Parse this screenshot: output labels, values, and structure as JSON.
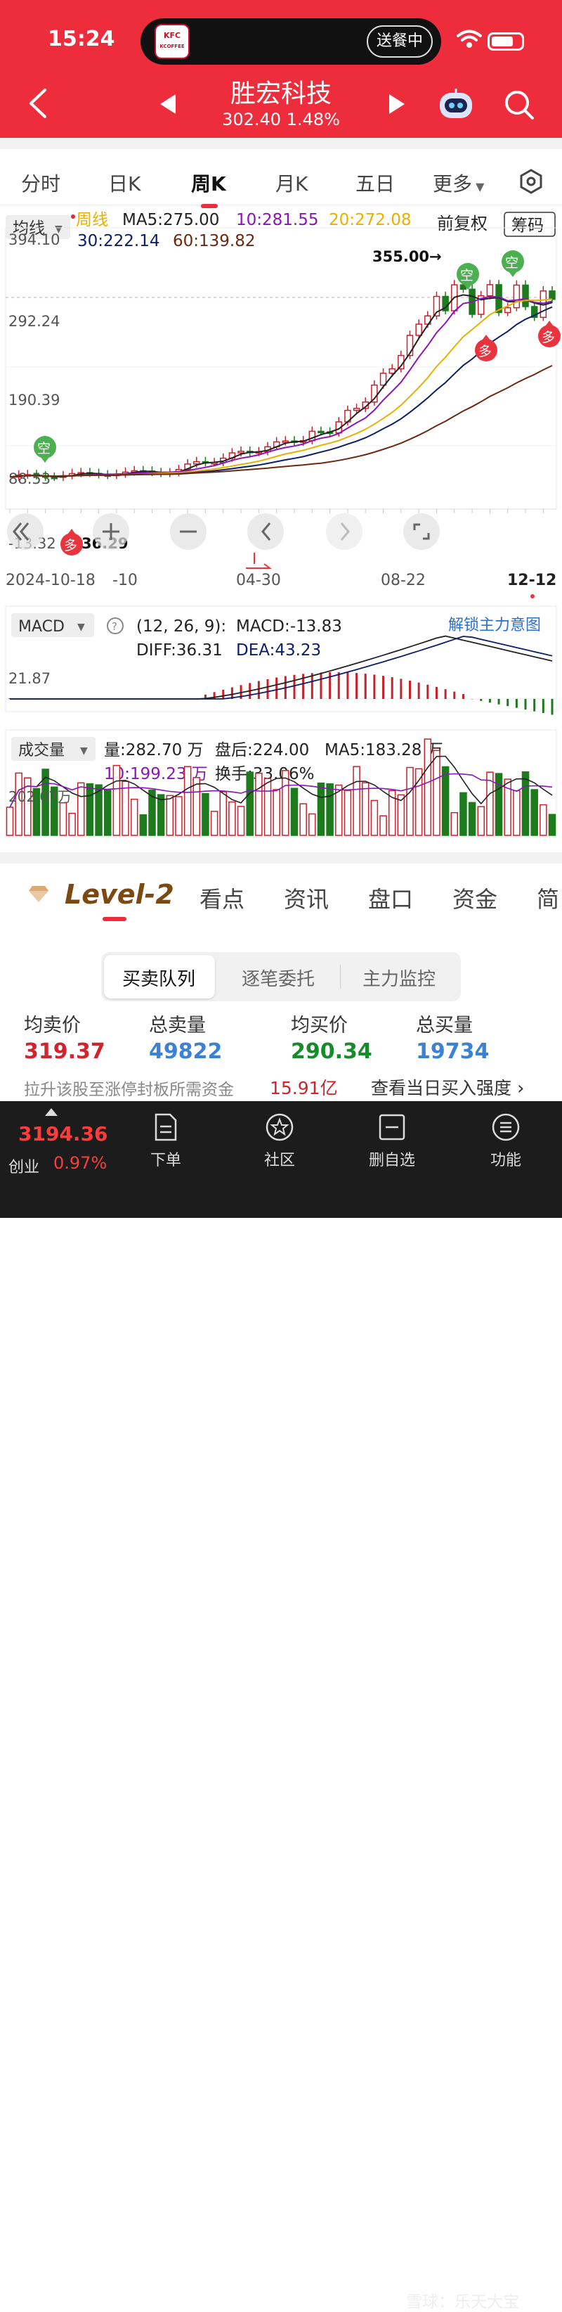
{
  "status_bar": {
    "time": "15:24",
    "island_logo": "KFC",
    "island_logo_sub": "KCOFFEE",
    "island_pill": "送餐中"
  },
  "header": {
    "stock_name": "胜宏科技",
    "price_change": "302.40 1.48%"
  },
  "tabs": [
    {
      "label": "分时"
    },
    {
      "label": "日K"
    },
    {
      "label": "周K"
    },
    {
      "label": "月K"
    },
    {
      "label": "五日"
    },
    {
      "label": "更多"
    }
  ],
  "kline": {
    "indicator_dropdown": "均线",
    "period_label": "周线",
    "ma5": "MA5:275.00",
    "ma10": "10:281.55",
    "ma20": "20:272.08",
    "ma30": "30:222.14",
    "ma60": "60:139.82",
    "adjust": "前复权",
    "chip_button": "筹码",
    "y_labels": [
      "394.10",
      "292.24",
      "190.39",
      "88.53",
      "-13.32"
    ],
    "high_marker": "355.00→",
    "low_marker": "36.29",
    "signal_kong": "空",
    "signal_duo": "多",
    "x_labels": [
      "2024-10-18",
      "-10",
      "04-30",
      "08-22",
      "12-12"
    ],
    "colors": {
      "up": "#c9212b",
      "down": "#1d7a1d",
      "ma5": "#222222",
      "ma10": "#8a16b8",
      "ma20": "#e8b000",
      "ma30": "#0c1e66",
      "ma60": "#6b2a10"
    }
  },
  "macd": {
    "dropdown": "MACD",
    "params": "(12, 26, 9):",
    "macd_value": "MACD:-13.83",
    "diff": "DIFF:36.31",
    "dea": "DEA:43.23",
    "unlock_link": "解锁主力意图",
    "y_label": "21.87"
  },
  "volume": {
    "dropdown": "成交量",
    "vol": "量:282.70 万",
    "after_hours": "盘后:224.00",
    "ma5": "MA5:183.28 万",
    "ma10": "10:199.23 万",
    "turnover": "换手:33.06%",
    "y_label": "202.07万"
  },
  "level2_tabs": {
    "brand": "Level-2",
    "items": [
      {
        "label": "看点"
      },
      {
        "label": "资讯"
      },
      {
        "label": "盘口"
      },
      {
        "label": "资金"
      },
      {
        "label": "简"
      }
    ]
  },
  "orderbook_tabs": [
    {
      "label": "买卖队列"
    },
    {
      "label": "逐笔委托"
    },
    {
      "label": "主力监控"
    }
  ],
  "orderbook": {
    "avg_sell_label": "均卖价",
    "avg_sell": "319.37",
    "total_sell_label": "总卖量",
    "total_sell": "49822",
    "avg_buy_label": "均买价",
    "avg_buy": "290.34",
    "total_buy_label": "总买量",
    "total_buy": "19734",
    "raise_label": "拉升该股至涨停封板所需资金",
    "raise_value": "15.91亿",
    "strength_link": "查看当日买入强度"
  },
  "bottom_nav": {
    "index_value": "3194.36",
    "index_name": "创业",
    "index_pct": "0.97%",
    "items": [
      {
        "label": "下单"
      },
      {
        "label": "社区"
      },
      {
        "label": "删自选"
      },
      {
        "label": "功能"
      }
    ]
  },
  "watermark": "雪球：乐天大宝"
}
